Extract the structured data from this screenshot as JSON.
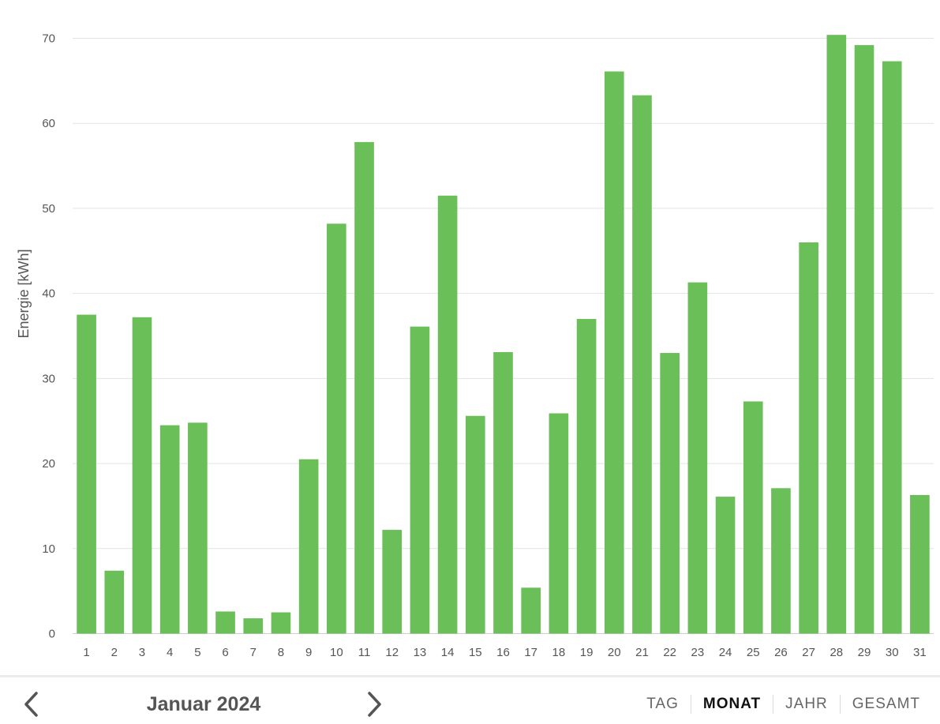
{
  "chart_data": {
    "type": "bar",
    "ylabel": "Energie [kWh]",
    "xlabel": "",
    "ylim": [
      0,
      70
    ],
    "yticks": [
      0,
      10,
      20,
      30,
      40,
      50,
      60,
      70
    ],
    "grid": true,
    "bar_color": "#6abf59",
    "categories": [
      "1",
      "2",
      "3",
      "4",
      "5",
      "6",
      "7",
      "8",
      "9",
      "10",
      "11",
      "12",
      "13",
      "14",
      "15",
      "16",
      "17",
      "18",
      "19",
      "20",
      "21",
      "22",
      "23",
      "24",
      "25",
      "26",
      "27",
      "28",
      "29",
      "30",
      "31"
    ],
    "values": [
      37.5,
      7.4,
      37.2,
      24.5,
      24.8,
      2.6,
      1.8,
      2.5,
      20.5,
      48.2,
      57.8,
      12.2,
      36.1,
      51.5,
      25.6,
      33.1,
      5.4,
      25.9,
      37.0,
      66.1,
      63.3,
      33.0,
      41.3,
      16.1,
      27.3,
      17.1,
      46.0,
      70.4,
      69.2,
      67.3,
      16.3
    ]
  },
  "footer": {
    "period_label": "Januar 2024",
    "prev_icon": "chevron-left-icon",
    "next_icon": "chevron-right-icon",
    "tabs": [
      {
        "label": "TAG",
        "active": false
      },
      {
        "label": "MONAT",
        "active": true
      },
      {
        "label": "JAHR",
        "active": false
      },
      {
        "label": "GESAMT",
        "active": false
      }
    ]
  }
}
